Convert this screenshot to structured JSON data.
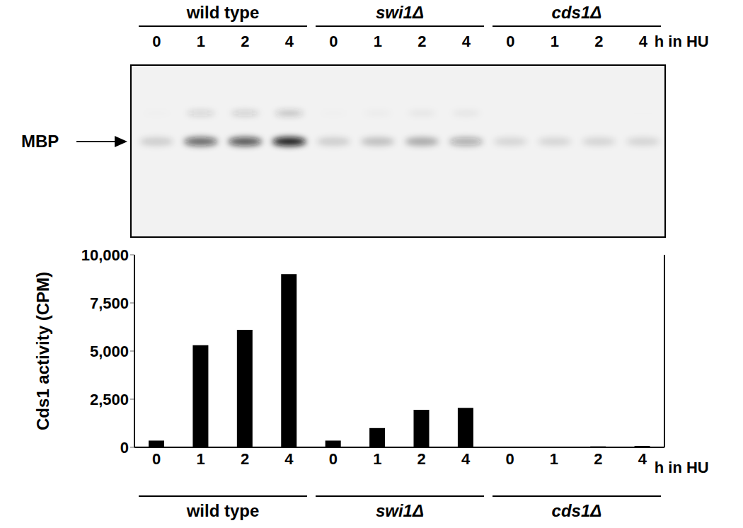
{
  "chart_data": {
    "type": "bar",
    "ylabel": "Cds1 activity (CPM)",
    "xlabel": "h in HU",
    "blot_label": "MBP",
    "categories": [
      "0",
      "1",
      "2",
      "4",
      "0",
      "1",
      "2",
      "4",
      "0",
      "1",
      "2",
      "4"
    ],
    "groups": [
      "wild type",
      "wild type",
      "wild type",
      "wild type",
      "swi1Δ",
      "swi1Δ",
      "swi1Δ",
      "swi1Δ",
      "cds1Δ",
      "cds1Δ",
      "cds1Δ",
      "cds1Δ"
    ],
    "values": [
      350,
      5300,
      6100,
      9000,
      350,
      1000,
      1950,
      2050,
      0,
      0,
      50,
      70
    ],
    "color": "#000000",
    "ylim": [
      0,
      10000
    ],
    "yticks": [
      0,
      {
        "value": 2500,
        "label": "2,500"
      },
      {
        "value": 5000,
        "label": "5,000"
      },
      {
        "value": 7500,
        "label": "7,500"
      },
      {
        "value": 10000,
        "label": "10,000"
      }
    ],
    "grid": false
  }
}
